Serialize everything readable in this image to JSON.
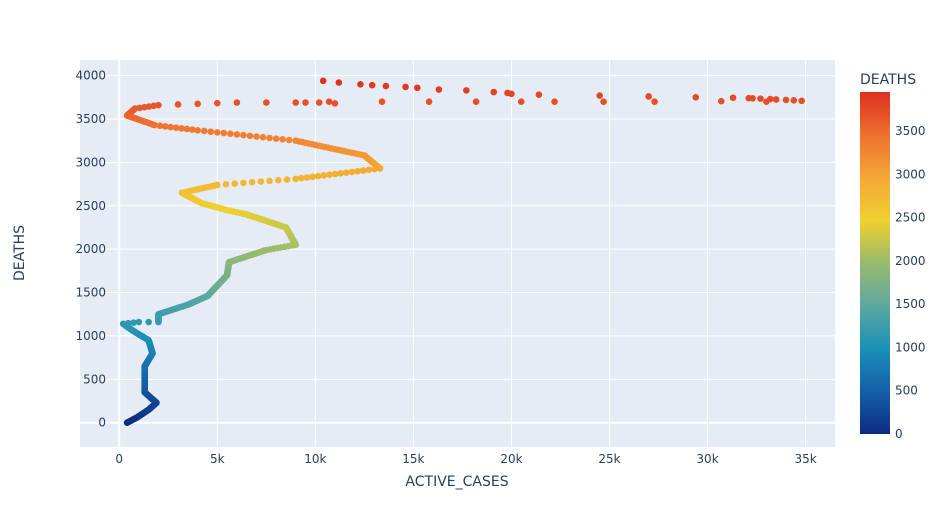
{
  "chart_data": {
    "type": "scatter",
    "xlabel": "ACTIVE_CASES",
    "ylabel": "DEATHS",
    "xlim": [
      -2000,
      36500
    ],
    "ylim": [
      -280,
      4180
    ],
    "x_ticks": [
      0,
      5000,
      10000,
      15000,
      20000,
      25000,
      30000,
      35000
    ],
    "x_tick_labels": [
      "0",
      "5k",
      "10k",
      "15k",
      "20k",
      "25k",
      "30k",
      "35k"
    ],
    "y_ticks": [
      0,
      500,
      1000,
      1500,
      2000,
      2500,
      3000,
      3500,
      4000
    ],
    "y_tick_labels": [
      "0",
      "500",
      "1000",
      "1500",
      "2000",
      "2500",
      "3000",
      "3500",
      "4000"
    ],
    "grid": true,
    "colorbar": {
      "title": "DEATHS",
      "range": [
        0,
        3950
      ],
      "ticks": [
        0,
        500,
        1000,
        1500,
        2000,
        2500,
        3000,
        3500
      ],
      "tick_labels": [
        "0",
        "500",
        "1000",
        "1500",
        "2000",
        "2500",
        "3000",
        "3500"
      ],
      "colorscale": [
        "#0d2b80",
        "#1560a8",
        "#1a90b8",
        "#5ea8a0",
        "#98bb6c",
        "#f0d030",
        "#f4a735",
        "#ee7030",
        "#dd3020"
      ]
    },
    "colors": {
      "plot_bg": "#e5ecf6",
      "grid": "#ffffff",
      "text": "#2a3f5f"
    },
    "anchors": [
      [
        400,
        0
      ],
      [
        900,
        60
      ],
      [
        1500,
        150
      ],
      [
        1900,
        230
      ],
      [
        1300,
        350
      ],
      [
        1300,
        650
      ],
      [
        1700,
        800
      ],
      [
        1500,
        950
      ],
      [
        700,
        1060
      ],
      [
        200,
        1140
      ],
      [
        1000,
        1160
      ],
      [
        2000,
        1160
      ],
      [
        2000,
        1250
      ],
      [
        3500,
        1360
      ],
      [
        4500,
        1460
      ],
      [
        5500,
        1700
      ],
      [
        5600,
        1850
      ],
      [
        7500,
        1990
      ],
      [
        9000,
        2050
      ],
      [
        8500,
        2250
      ],
      [
        6500,
        2400
      ],
      [
        5500,
        2450
      ],
      [
        4200,
        2530
      ],
      [
        3200,
        2650
      ],
      [
        5000,
        2740
      ],
      [
        9000,
        2810
      ],
      [
        13300,
        2930
      ],
      [
        12500,
        3080
      ],
      [
        9000,
        3250
      ],
      [
        4000,
        3370
      ],
      [
        1800,
        3430
      ],
      [
        400,
        3540
      ],
      [
        800,
        3620
      ],
      [
        2000,
        3660
      ],
      [
        6000,
        3690
      ],
      [
        9000,
        3690
      ]
    ],
    "scatter_points": [
      [
        10400,
        3940
      ],
      [
        11200,
        3920
      ],
      [
        12300,
        3900
      ],
      [
        12900,
        3890
      ],
      [
        13600,
        3880
      ],
      [
        14600,
        3870
      ],
      [
        15200,
        3860
      ],
      [
        16300,
        3840
      ],
      [
        17700,
        3830
      ],
      [
        19100,
        3810
      ],
      [
        19800,
        3800
      ],
      [
        20000,
        3790
      ],
      [
        21400,
        3780
      ],
      [
        24500,
        3770
      ],
      [
        27000,
        3760
      ],
      [
        29400,
        3750
      ],
      [
        31300,
        3745
      ],
      [
        32100,
        3740
      ],
      [
        32300,
        3738
      ],
      [
        32700,
        3735
      ],
      [
        33200,
        3730
      ],
      [
        33500,
        3725
      ],
      [
        34000,
        3720
      ],
      [
        34400,
        3715
      ],
      [
        34800,
        3710
      ],
      [
        30700,
        3705
      ],
      [
        33000,
        3700
      ],
      [
        27300,
        3700
      ],
      [
        24700,
        3700
      ],
      [
        22200,
        3700
      ],
      [
        20500,
        3700
      ],
      [
        18200,
        3700
      ],
      [
        15800,
        3700
      ],
      [
        13400,
        3700
      ],
      [
        10700,
        3700
      ],
      [
        9500,
        3690
      ],
      [
        10200,
        3690
      ],
      [
        11000,
        3680
      ]
    ]
  }
}
